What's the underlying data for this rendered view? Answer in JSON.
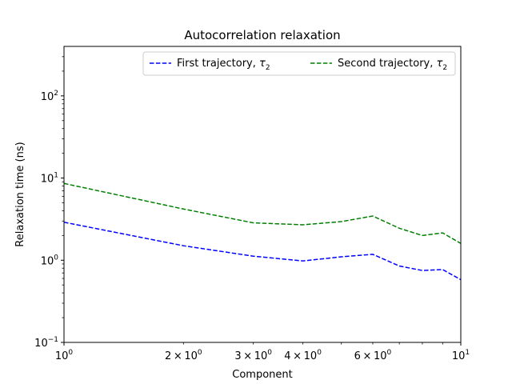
{
  "chart_data": {
    "type": "line",
    "title": "Autocorrelation relaxation",
    "xlabel": "Component",
    "ylabel": "Relaxation time (ns)",
    "xscale": "log",
    "yscale": "log",
    "xlim": [
      1,
      10
    ],
    "ylim": [
      0.1,
      400
    ],
    "grid": false,
    "legend_position": "top-right",
    "legend_columns": 2,
    "x_major_ticks": [
      {
        "value": 1,
        "base": "10",
        "exp": "0"
      },
      {
        "value": 10,
        "base": "10",
        "exp": "1"
      }
    ],
    "x_minor_ticks": [
      {
        "value": 2,
        "mant": "2",
        "base": "10",
        "exp": "0"
      },
      {
        "value": 3,
        "mant": "3",
        "base": "10",
        "exp": "0"
      },
      {
        "value": 4,
        "mant": "4",
        "base": "10",
        "exp": "0"
      },
      {
        "value": 5,
        "mant": "",
        "base": "",
        "exp": ""
      },
      {
        "value": 6,
        "mant": "6",
        "base": "10",
        "exp": "0"
      },
      {
        "value": 7,
        "mant": "",
        "base": "",
        "exp": ""
      },
      {
        "value": 8,
        "mant": "",
        "base": "",
        "exp": ""
      },
      {
        "value": 9,
        "mant": "",
        "base": "",
        "exp": ""
      }
    ],
    "y_major_ticks": [
      {
        "value": 0.1,
        "base": "10",
        "exp": "−1"
      },
      {
        "value": 1,
        "base": "10",
        "exp": "0"
      },
      {
        "value": 10,
        "base": "10",
        "exp": "1"
      },
      {
        "value": 100,
        "base": "10",
        "exp": "2"
      }
    ],
    "x": [
      1,
      2,
      3,
      4,
      5,
      6,
      7,
      8,
      9,
      10
    ],
    "series": [
      {
        "name": "First trajectory, ",
        "name_symbol": "τ",
        "name_sub": "2",
        "color": "#0000ff",
        "style": "dashed",
        "values": [
          2.9,
          1.5,
          1.12,
          0.98,
          1.1,
          1.18,
          0.85,
          0.75,
          0.77,
          0.58
        ]
      },
      {
        "name": "Second trajectory, ",
        "name_symbol": "τ",
        "name_sub": "2",
        "color": "#008000",
        "style": "dashed",
        "values": [
          8.6,
          4.2,
          2.85,
          2.7,
          2.95,
          3.45,
          2.45,
          2.0,
          2.15,
          1.6
        ]
      }
    ]
  }
}
